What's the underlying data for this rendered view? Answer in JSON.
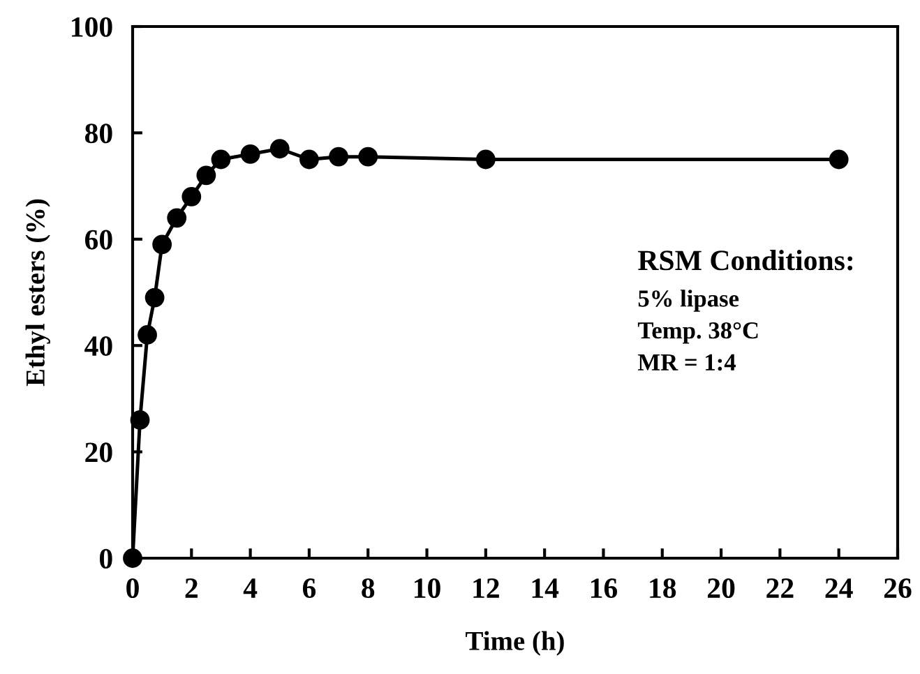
{
  "chart_data": {
    "type": "line",
    "xlabel": "Time (h)",
    "ylabel": "Ethyl esters (%)",
    "x": [
      0,
      0.25,
      0.5,
      0.75,
      1,
      1.5,
      2,
      2.5,
      3,
      4,
      5,
      6,
      7,
      8,
      12,
      24
    ],
    "series": [
      {
        "color": "#000000",
        "values": [
          0,
          26,
          42,
          49,
          59,
          64,
          68,
          72,
          75,
          76,
          77,
          75,
          75.5,
          75.5,
          75,
          75
        ]
      }
    ],
    "xlim": [
      0,
      26
    ],
    "xticks": [
      0,
      2,
      4,
      6,
      8,
      10,
      12,
      14,
      16,
      18,
      20,
      22,
      24,
      26
    ],
    "ylim": [
      0,
      100
    ],
    "yticks": [
      0,
      20,
      40,
      60,
      80,
      100
    ],
    "marker": "circle",
    "line_style": "solid",
    "grid": false,
    "legend": false,
    "annotations": [
      "RSM Conditions:",
      "5% lipase",
      "Temp. 38°C",
      "MR = 1:4"
    ]
  }
}
